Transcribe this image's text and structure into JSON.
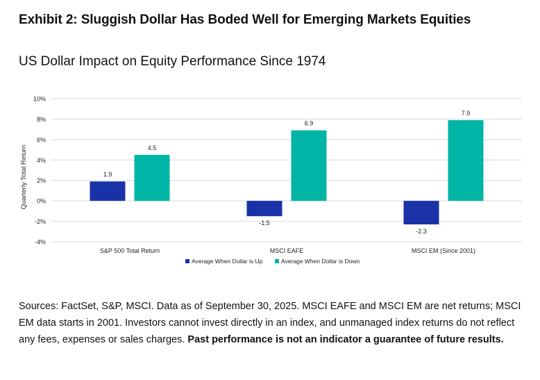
{
  "exhibit_title": "Exhibit 2: Sluggish Dollar Has Boded Well for Emerging Markets Equities",
  "chart_data": {
    "type": "bar",
    "title": "US Dollar Impact on Equity Performance Since 1974",
    "ylabel": "Quarterly Total Return",
    "xlabel": "",
    "ylim": [
      -4,
      10
    ],
    "yticks": [
      -4,
      -2,
      0,
      2,
      4,
      6,
      8,
      10
    ],
    "ytick_suffix": "%",
    "grid": true,
    "legend_placement": "bottom-center",
    "categories": [
      "S&P 500 Total Return",
      "MSCI EAFE",
      "MSCI EM (Since 2001)"
    ],
    "series": [
      {
        "name": "Average When Dollar is Up",
        "color": "#1a32a8",
        "values": [
          1.9,
          -1.5,
          -2.3
        ]
      },
      {
        "name": "Average When Dollar is Down",
        "color": "#00b5a5",
        "values": [
          4.5,
          6.9,
          7.9
        ]
      }
    ]
  },
  "notes": {
    "text": "Sources: FactSet, S&P, MSCI. Data as of September 30, 2025. MSCI EAFE and MSCI EM are net returns; MSCI EM data starts in 2001. Investors cannot invest directly in an index, and unmanaged index returns do not reflect any fees, expenses or sales charges. ",
    "bold_text": "Past performance is not an indicator a guarantee of future results."
  }
}
